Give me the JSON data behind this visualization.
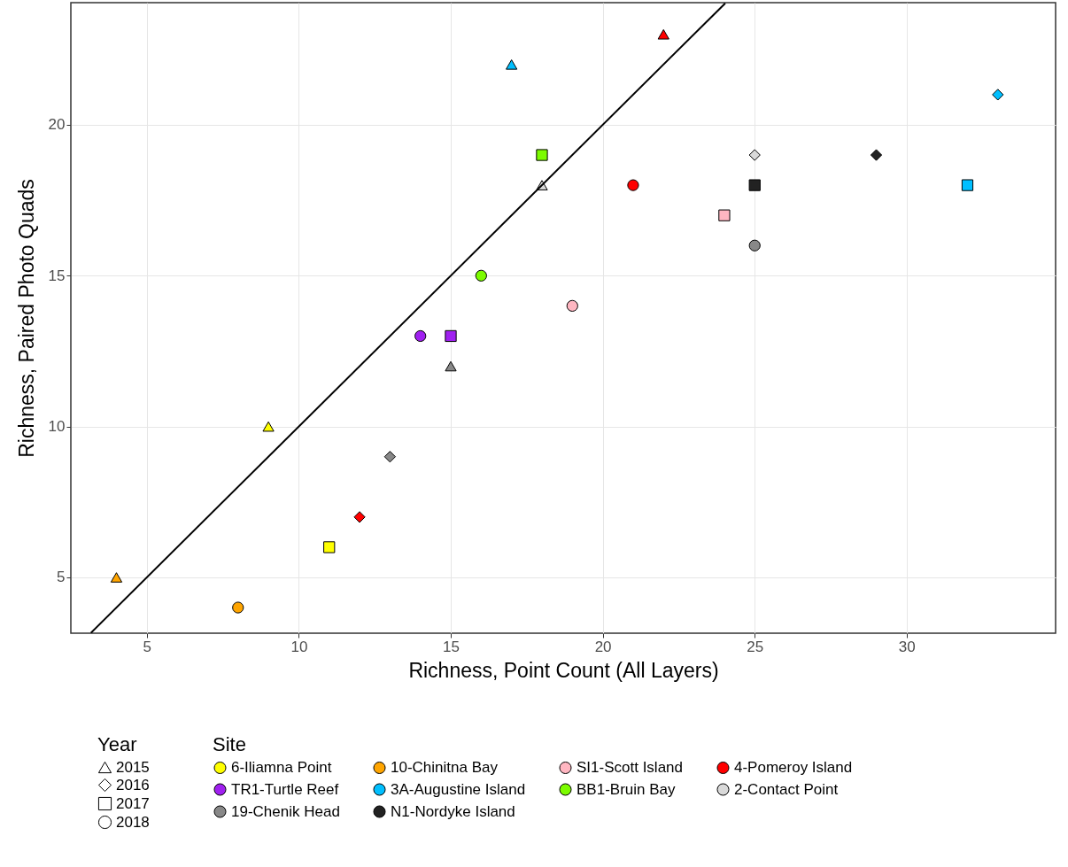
{
  "chart_data": {
    "type": "scatter",
    "xlabel": "Richness, Point Count (All Layers)",
    "ylabel": "Richness, Paired Photo Quads",
    "legend_title": [
      "Year",
      "Site"
    ],
    "legend": "bottom",
    "grid": true,
    "xlim": [
      2.5,
      34.9
    ],
    "ylim": [
      3.15,
      24.05
    ],
    "xticks": [
      5,
      10,
      15,
      20,
      25,
      30
    ],
    "yticks": [
      5,
      10,
      15,
      20
    ],
    "series": [
      {
        "name": "2015",
        "marker": "triangle"
      },
      {
        "name": "2016",
        "marker": "diamond"
      },
      {
        "name": "2017",
        "marker": "square"
      },
      {
        "name": "2018",
        "marker": "circle"
      },
      {
        "name": "6-Iliamna Point",
        "color": "#ffff00",
        "x": [
          9,
          11
        ],
        "values": [
          10,
          6
        ],
        "marker": [
          "triangle",
          "square"
        ]
      },
      {
        "name": "10-Chinitna Bay",
        "color": "#ffa500",
        "x": [
          4,
          8
        ],
        "values": [
          5,
          4
        ],
        "marker": [
          "triangle",
          "circle"
        ]
      },
      {
        "name": "SI1-Scott Island",
        "color": "#ffb6c1",
        "x": [
          24,
          19
        ],
        "values": [
          17,
          14
        ],
        "marker": [
          "square",
          "circle"
        ]
      },
      {
        "name": "4-Pomeroy Island",
        "color": "#ff0000",
        "x": [
          22,
          12,
          21
        ],
        "values": [
          23,
          7,
          18
        ],
        "marker": [
          "triangle",
          "diamond",
          "circle"
        ]
      },
      {
        "name": "TR1-Turtle Reef",
        "color": "#a020f0",
        "x": [
          15,
          14
        ],
        "values": [
          13,
          13
        ],
        "marker": [
          "square",
          "circle"
        ]
      },
      {
        "name": "3A-Augustine Island",
        "color": "#00bfff",
        "x": [
          17,
          33,
          32
        ],
        "values": [
          22,
          21,
          18
        ],
        "marker": [
          "triangle",
          "diamond",
          "square"
        ]
      },
      {
        "name": "BB1-Bruin Bay",
        "color": "#7cfc00",
        "x": [
          18,
          16
        ],
        "values": [
          19,
          15
        ],
        "marker": [
          "square",
          "circle"
        ]
      },
      {
        "name": "2-Contact Point",
        "color": "#d9d9d9",
        "x": [
          18,
          25
        ],
        "values": [
          18,
          19
        ],
        "marker": [
          "triangle",
          "diamond"
        ]
      },
      {
        "name": "19-Chenik Head",
        "color": "#888888",
        "x": [
          15,
          13,
          25
        ],
        "values": [
          12,
          9,
          16
        ],
        "marker": [
          "triangle",
          "diamond",
          "circle"
        ]
      },
      {
        "name": "N1-Nordyke Island",
        "color": "#222222",
        "x": [
          29,
          25
        ],
        "values": [
          19,
          18
        ],
        "marker": [
          "diamond",
          "square"
        ]
      },
      {
        "type": "line",
        "color": "#000000",
        "x": [
          3.16,
          24.03
        ],
        "values": [
          3.16,
          24.03
        ],
        "line_style": "solid"
      }
    ]
  }
}
